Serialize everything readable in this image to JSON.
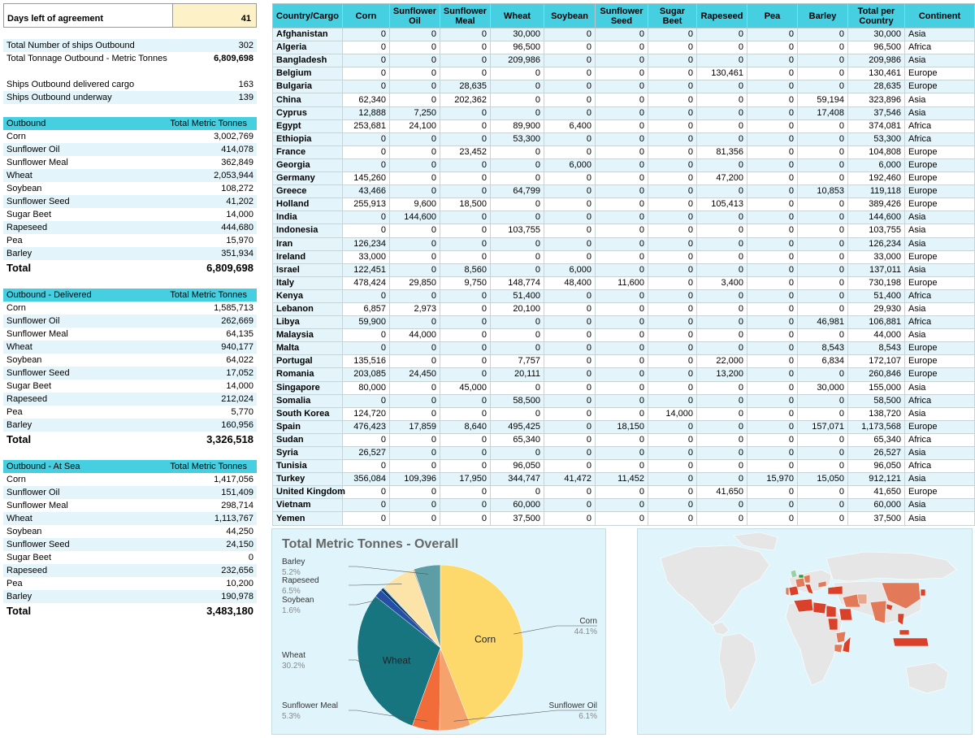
{
  "agreement": {
    "days_label": "Days left of agreement",
    "days_value": "41"
  },
  "summary": [
    {
      "label": "Total Number of ships Outbound",
      "value": "302",
      "alt": true
    },
    {
      "label": "Total Tonnage Outbound - Metric Tonnes",
      "value": "6,809,698",
      "bold": true,
      "alt": false
    }
  ],
  "ships": [
    {
      "label": "Ships Outbound delivered cargo",
      "value": "163",
      "alt": false
    },
    {
      "label": "Ships Outbound underway",
      "value": "139",
      "alt": true
    }
  ],
  "outbound": {
    "title": "Outbound",
    "col": "Total Metric Tonnes",
    "rows": [
      {
        "label": "Corn",
        "value": "3,002,769"
      },
      {
        "label": "Sunflower Oil",
        "value": "414,078"
      },
      {
        "label": "Sunflower Meal",
        "value": "362,849"
      },
      {
        "label": "Wheat",
        "value": "2,053,944"
      },
      {
        "label": "Soybean",
        "value": "108,272"
      },
      {
        "label": "Sunflower Seed",
        "value": "41,202"
      },
      {
        "label": "Sugar Beet",
        "value": "14,000"
      },
      {
        "label": "Rapeseed",
        "value": "444,680"
      },
      {
        "label": "Pea",
        "value": "15,970"
      },
      {
        "label": "Barley",
        "value": "351,934"
      }
    ],
    "total_label": "Total",
    "total_value": "6,809,698"
  },
  "delivered": {
    "title": "Outbound - Delivered",
    "col": "Total Metric Tonnes",
    "rows": [
      {
        "label": "Corn",
        "value": "1,585,713"
      },
      {
        "label": "Sunflower Oil",
        "value": "262,669"
      },
      {
        "label": "Sunflower Meal",
        "value": "64,135"
      },
      {
        "label": "Wheat",
        "value": "940,177"
      },
      {
        "label": "Soybean",
        "value": "64,022"
      },
      {
        "label": "Sunflower Seed",
        "value": "17,052"
      },
      {
        "label": "Sugar Beet",
        "value": "14,000"
      },
      {
        "label": "Rapeseed",
        "value": "212,024"
      },
      {
        "label": "Pea",
        "value": "5,770"
      },
      {
        "label": "Barley",
        "value": "160,956"
      }
    ],
    "total_label": "Total",
    "total_value": "3,326,518"
  },
  "atsea": {
    "title": "Outbound - At Sea",
    "col": "Total Metric Tonnes",
    "rows": [
      {
        "label": "Corn",
        "value": "1,417,056"
      },
      {
        "label": "Sunflower Oil",
        "value": "151,409"
      },
      {
        "label": "Sunflower Meal",
        "value": "298,714"
      },
      {
        "label": "Wheat",
        "value": "1,113,767"
      },
      {
        "label": "Soybean",
        "value": "44,250"
      },
      {
        "label": "Sunflower Seed",
        "value": "24,150"
      },
      {
        "label": "Sugar Beet",
        "value": "0"
      },
      {
        "label": "Rapeseed",
        "value": "232,656"
      },
      {
        "label": "Pea",
        "value": "10,200"
      },
      {
        "label": "Barley",
        "value": "190,978"
      }
    ],
    "total_label": "Total",
    "total_value": "3,483,180"
  },
  "table": {
    "headers": [
      "Country/Cargo",
      "Corn",
      "Sunflower Oil",
      "Sunflower Meal",
      "Wheat",
      "Soybean",
      "Sunflower Seed",
      "Sugar Beet",
      "Rapeseed",
      "Pea",
      "Barley",
      "Total per Country",
      "Continent"
    ],
    "rows": [
      [
        "Afghanistan",
        "0",
        "0",
        "0",
        "30,000",
        "0",
        "0",
        "0",
        "0",
        "0",
        "0",
        "30,000",
        "Asia"
      ],
      [
        "Algeria",
        "0",
        "0",
        "0",
        "96,500",
        "0",
        "0",
        "0",
        "0",
        "0",
        "0",
        "96,500",
        "Africa"
      ],
      [
        "Bangladesh",
        "0",
        "0",
        "0",
        "209,986",
        "0",
        "0",
        "0",
        "0",
        "0",
        "0",
        "209,986",
        "Asia"
      ],
      [
        "Belgium",
        "0",
        "0",
        "0",
        "0",
        "0",
        "0",
        "0",
        "130,461",
        "0",
        "0",
        "130,461",
        "Europe"
      ],
      [
        "Bulgaria",
        "0",
        "0",
        "28,635",
        "0",
        "0",
        "0",
        "0",
        "0",
        "0",
        "0",
        "28,635",
        "Europe"
      ],
      [
        "China",
        "62,340",
        "0",
        "202,362",
        "0",
        "0",
        "0",
        "0",
        "0",
        "0",
        "59,194",
        "323,896",
        "Asia"
      ],
      [
        "Cyprus",
        "12,888",
        "7,250",
        "0",
        "0",
        "0",
        "0",
        "0",
        "0",
        "0",
        "17,408",
        "37,546",
        "Asia"
      ],
      [
        "Egypt",
        "253,681",
        "24,100",
        "0",
        "89,900",
        "6,400",
        "0",
        "0",
        "0",
        "0",
        "0",
        "374,081",
        "Africa"
      ],
      [
        "Ethiopia",
        "0",
        "0",
        "0",
        "53,300",
        "0",
        "0",
        "0",
        "0",
        "0",
        "0",
        "53,300",
        "Africa"
      ],
      [
        "France",
        "0",
        "0",
        "23,452",
        "0",
        "0",
        "0",
        "0",
        "81,356",
        "0",
        "0",
        "104,808",
        "Europe"
      ],
      [
        "Georgia",
        "0",
        "0",
        "0",
        "0",
        "6,000",
        "0",
        "0",
        "0",
        "0",
        "0",
        "6,000",
        "Europe"
      ],
      [
        "Germany",
        "145,260",
        "0",
        "0",
        "0",
        "0",
        "0",
        "0",
        "47,200",
        "0",
        "0",
        "192,460",
        "Europe"
      ],
      [
        "Greece",
        "43,466",
        "0",
        "0",
        "64,799",
        "0",
        "0",
        "0",
        "0",
        "0",
        "10,853",
        "119,118",
        "Europe"
      ],
      [
        "Holland",
        "255,913",
        "9,600",
        "18,500",
        "0",
        "0",
        "0",
        "0",
        "105,413",
        "0",
        "0",
        "389,426",
        "Europe"
      ],
      [
        "India",
        "0",
        "144,600",
        "0",
        "0",
        "0",
        "0",
        "0",
        "0",
        "0",
        "0",
        "144,600",
        "Asia"
      ],
      [
        "Indonesia",
        "0",
        "0",
        "0",
        "103,755",
        "0",
        "0",
        "0",
        "0",
        "0",
        "0",
        "103,755",
        "Asia"
      ],
      [
        "Iran",
        "126,234",
        "0",
        "0",
        "0",
        "0",
        "0",
        "0",
        "0",
        "0",
        "0",
        "126,234",
        "Asia"
      ],
      [
        "Ireland",
        "33,000",
        "0",
        "0",
        "0",
        "0",
        "0",
        "0",
        "0",
        "0",
        "0",
        "33,000",
        "Europe"
      ],
      [
        "Israel",
        "122,451",
        "0",
        "8,560",
        "0",
        "6,000",
        "0",
        "0",
        "0",
        "0",
        "0",
        "137,011",
        "Asia"
      ],
      [
        "Italy",
        "478,424",
        "29,850",
        "9,750",
        "148,774",
        "48,400",
        "11,600",
        "0",
        "3,400",
        "0",
        "0",
        "730,198",
        "Europe"
      ],
      [
        "Kenya",
        "0",
        "0",
        "0",
        "51,400",
        "0",
        "0",
        "0",
        "0",
        "0",
        "0",
        "51,400",
        "Africa"
      ],
      [
        "Lebanon",
        "6,857",
        "2,973",
        "0",
        "20,100",
        "0",
        "0",
        "0",
        "0",
        "0",
        "0",
        "29,930",
        "Asia"
      ],
      [
        "Libya",
        "59,900",
        "0",
        "0",
        "0",
        "0",
        "0",
        "0",
        "0",
        "0",
        "46,981",
        "106,881",
        "Africa"
      ],
      [
        "Malaysia",
        "0",
        "44,000",
        "0",
        "0",
        "0",
        "0",
        "0",
        "0",
        "0",
        "0",
        "44,000",
        "Asia"
      ],
      [
        "Malta",
        "0",
        "0",
        "0",
        "0",
        "0",
        "0",
        "0",
        "0",
        "0",
        "8,543",
        "8,543",
        "Europe"
      ],
      [
        "Portugal",
        "135,516",
        "0",
        "0",
        "7,757",
        "0",
        "0",
        "0",
        "22,000",
        "0",
        "6,834",
        "172,107",
        "Europe"
      ],
      [
        "Romania",
        "203,085",
        "24,450",
        "0",
        "20,111",
        "0",
        "0",
        "0",
        "13,200",
        "0",
        "0",
        "260,846",
        "Europe"
      ],
      [
        "Singapore",
        "80,000",
        "0",
        "45,000",
        "0",
        "0",
        "0",
        "0",
        "0",
        "0",
        "30,000",
        "155,000",
        "Asia"
      ],
      [
        "Somalia",
        "0",
        "0",
        "0",
        "58,500",
        "0",
        "0",
        "0",
        "0",
        "0",
        "0",
        "58,500",
        "Africa"
      ],
      [
        "South Korea",
        "124,720",
        "0",
        "0",
        "0",
        "0",
        "0",
        "14,000",
        "0",
        "0",
        "0",
        "138,720",
        "Asia"
      ],
      [
        "Spain",
        "476,423",
        "17,859",
        "8,640",
        "495,425",
        "0",
        "18,150",
        "0",
        "0",
        "0",
        "157,071",
        "1,173,568",
        "Europe"
      ],
      [
        "Sudan",
        "0",
        "0",
        "0",
        "65,340",
        "0",
        "0",
        "0",
        "0",
        "0",
        "0",
        "65,340",
        "Africa"
      ],
      [
        "Syria",
        "26,527",
        "0",
        "0",
        "0",
        "0",
        "0",
        "0",
        "0",
        "0",
        "0",
        "26,527",
        "Asia"
      ],
      [
        "Tunisia",
        "0",
        "0",
        "0",
        "96,050",
        "0",
        "0",
        "0",
        "0",
        "0",
        "0",
        "96,050",
        "Africa"
      ],
      [
        "Turkey",
        "356,084",
        "109,396",
        "17,950",
        "344,747",
        "41,472",
        "11,452",
        "0",
        "0",
        "15,970",
        "15,050",
        "912,121",
        "Asia"
      ],
      [
        "United Kingdom",
        "0",
        "0",
        "0",
        "0",
        "0",
        "0",
        "0",
        "41,650",
        "0",
        "0",
        "41,650",
        "Europe"
      ],
      [
        "Vietnam",
        "0",
        "0",
        "0",
        "60,000",
        "0",
        "0",
        "0",
        "0",
        "0",
        "0",
        "60,000",
        "Asia"
      ],
      [
        "Yemen",
        "0",
        "0",
        "0",
        "37,500",
        "0",
        "0",
        "0",
        "0",
        "0",
        "0",
        "37,500",
        "Asia"
      ]
    ]
  },
  "chart_data": {
    "type": "pie",
    "title": "Total Metric Tonnes - Overall",
    "slices": [
      {
        "name": "Corn",
        "value": 3002769,
        "pct": "44.1%",
        "color": "#fdd96b",
        "inner": true
      },
      {
        "name": "Sunflower Oil",
        "value": 414078,
        "pct": "6.1%",
        "color": "#f6a26c"
      },
      {
        "name": "Sunflower Meal",
        "value": 362849,
        "pct": "5.3%",
        "color": "#f26c3a"
      },
      {
        "name": "Wheat",
        "value": 2053944,
        "pct": "30.2%",
        "color": "#177580",
        "inner": true
      },
      {
        "name": "Soybean",
        "value": 108272,
        "pct": "1.6%",
        "color": "#234fa7"
      },
      {
        "name": "Sunflower Seed",
        "value": 41202,
        "color": "#0d3b63"
      },
      {
        "name": "Sugar Beet",
        "value": 14000,
        "color": "#8fc9e8"
      },
      {
        "name": "Rapeseed",
        "value": 444680,
        "pct": "6.5%",
        "color": "#fce3a8"
      },
      {
        "name": "Pea",
        "value": 15970,
        "color": "#c9a97e"
      },
      {
        "name": "Barley",
        "value": 351934,
        "pct": "5.2%",
        "color": "#5d9ea6"
      }
    ]
  },
  "map": {
    "colors": {
      "land": "#e6e6e6",
      "border": "#ffffff",
      "high": "#d9412a",
      "mid": "#e27a5a",
      "low": "#e9a88e",
      "green": "#2f9e3c",
      "lightgreen": "#9bd0a4"
    }
  }
}
